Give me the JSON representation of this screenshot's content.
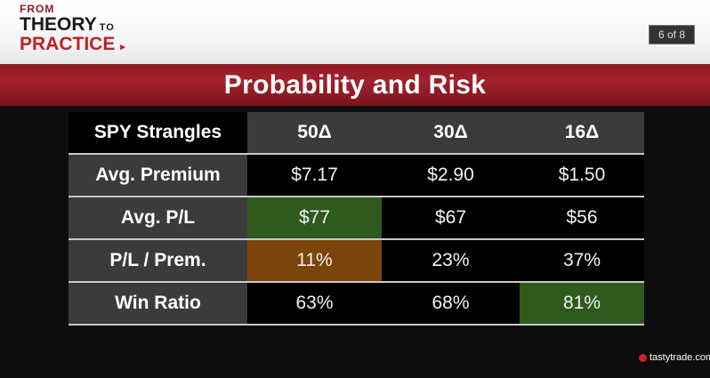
{
  "header": {
    "logo": {
      "line1": "FROM",
      "line2": "THEORY",
      "line2_suffix": "TO",
      "line3": "PRACTICE",
      "arrow": "▸"
    },
    "page_indicator": "6 of 8"
  },
  "title": "Probability and Risk",
  "table": {
    "headers": [
      "SPY Strangles",
      "50Δ",
      "30Δ",
      "16Δ"
    ],
    "rows": [
      {
        "label": "Avg. Premium",
        "values": [
          "$7.17",
          "$2.90",
          "$1.50"
        ]
      },
      {
        "label": "Avg. P/L",
        "values": [
          "$77",
          "$67",
          "$56"
        ]
      },
      {
        "label": "P/L / Prem.",
        "values": [
          "11%",
          "23%",
          "37%"
        ]
      },
      {
        "label": "Win Ratio",
        "values": [
          "63%",
          "68%",
          "81%"
        ]
      }
    ]
  },
  "footer": {
    "brand": "tastytrade.com",
    "icon": "cherry-icon"
  },
  "colors": {
    "accent": "#a1222c",
    "highlight_green": "#2f5a1e",
    "highlight_orange": "#7b4408"
  }
}
